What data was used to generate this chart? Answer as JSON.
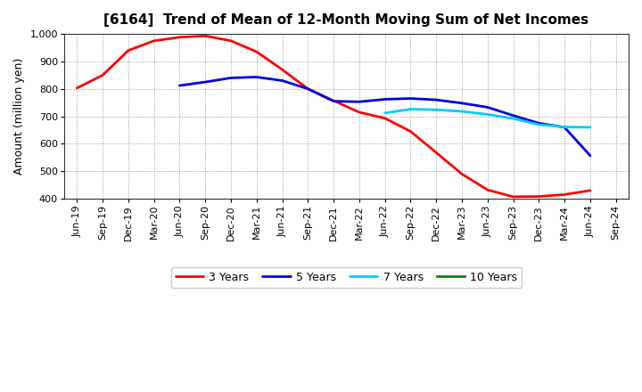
{
  "title": "[6164]  Trend of Mean of 12-Month Moving Sum of Net Incomes",
  "ylabel": "Amount (million yen)",
  "ylim": [
    400,
    1000
  ],
  "yticks": [
    400,
    500,
    600,
    700,
    800,
    900,
    1000
  ],
  "background_color": "#ffffff",
  "plot_bg_color": "#ffffff",
  "grid_color": "#999999",
  "x_labels": [
    "Jun-19",
    "Sep-19",
    "Dec-19",
    "Mar-20",
    "Jun-20",
    "Sep-20",
    "Dec-20",
    "Mar-21",
    "Jun-21",
    "Sep-21",
    "Dec-21",
    "Mar-22",
    "Jun-22",
    "Sep-22",
    "Dec-22",
    "Mar-23",
    "Jun-23",
    "Sep-23",
    "Dec-23",
    "Mar-24",
    "Jun-24",
    "Sep-24"
  ],
  "series": [
    {
      "label": "3 Years",
      "color": "#ff0000",
      "linewidth": 2.0,
      "values": [
        803,
        850,
        940,
        975,
        988,
        993,
        975,
        935,
        870,
        800,
        757,
        715,
        693,
        645,
        568,
        490,
        432,
        407,
        408,
        415,
        430,
        null
      ]
    },
    {
      "label": "5 Years",
      "color": "#0000dd",
      "linewidth": 2.0,
      "values": [
        null,
        null,
        null,
        null,
        812,
        825,
        840,
        843,
        830,
        800,
        755,
        753,
        762,
        765,
        760,
        748,
        733,
        703,
        675,
        660,
        557,
        null
      ]
    },
    {
      "label": "7 Years",
      "color": "#00ccff",
      "linewidth": 2.0,
      "values": [
        null,
        null,
        null,
        null,
        null,
        null,
        null,
        null,
        null,
        null,
        null,
        null,
        712,
        726,
        724,
        718,
        707,
        692,
        670,
        661,
        660,
        null
      ]
    },
    {
      "label": "10 Years",
      "color": "#008800",
      "linewidth": 2.0,
      "values": [
        null,
        null,
        null,
        null,
        null,
        null,
        null,
        null,
        null,
        null,
        null,
        null,
        null,
        null,
        null,
        null,
        null,
        null,
        null,
        null,
        null,
        null
      ]
    }
  ],
  "legend_ncol": 4,
  "title_fontsize": 11,
  "axis_fontsize": 8,
  "ylabel_fontsize": 9
}
